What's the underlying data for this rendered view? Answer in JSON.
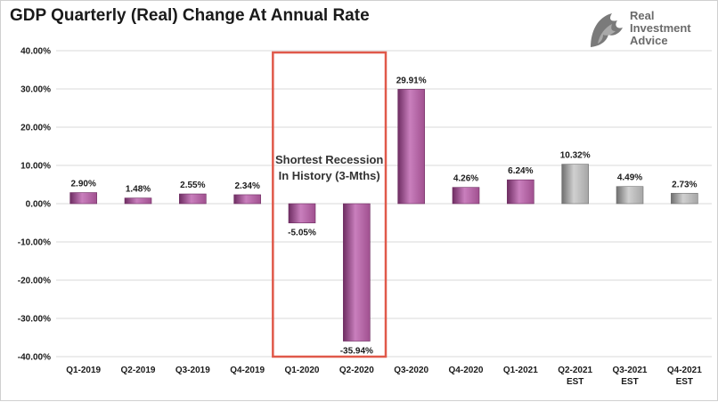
{
  "page": {
    "title": "GDP Quarterly (Real) Change At Annual Rate",
    "brand": {
      "line1": "Real",
      "line2": "Investment",
      "line3": "Advice"
    }
  },
  "chart_data": {
    "type": "bar",
    "title": "GDP Quarterly (Real) Change At Annual Rate",
    "xlabel": "",
    "ylabel": "",
    "ylim": [
      -40,
      40
    ],
    "yticks": [
      40,
      30,
      20,
      10,
      0,
      -10,
      -20,
      -30,
      -40
    ],
    "ytick_labels": [
      "40.00%",
      "30.00%",
      "20.00%",
      "10.00%",
      "0.00%",
      "-10.00%",
      "-20.00%",
      "-30.00%",
      "-40.00%"
    ],
    "grid": true,
    "legend": "none",
    "categories": [
      [
        "Q1-2019"
      ],
      [
        "Q2-2019"
      ],
      [
        "Q3-2019"
      ],
      [
        "Q4-2019"
      ],
      [
        "Q1-2020"
      ],
      [
        "Q2-2020"
      ],
      [
        "Q3-2020"
      ],
      [
        "Q4-2020"
      ],
      [
        "Q1-2021"
      ],
      [
        "Q2-2021",
        "EST"
      ],
      [
        "Q3-2021",
        "EST"
      ],
      [
        "Q4-2021",
        "EST"
      ]
    ],
    "values": [
      2.9,
      1.48,
      2.55,
      2.34,
      -5.05,
      -35.94,
      29.91,
      4.26,
      6.24,
      10.32,
      4.49,
      2.73
    ],
    "value_labels": [
      "2.90%",
      "1.48%",
      "2.55%",
      "2.34%",
      "-5.05%",
      "-35.94%",
      "29.91%",
      "4.26%",
      "6.24%",
      "10.32%",
      "4.49%",
      "2.73%"
    ],
    "estimate": [
      false,
      false,
      false,
      false,
      false,
      false,
      false,
      false,
      false,
      true,
      true,
      true
    ],
    "colors": {
      "actual": "#a0508f",
      "actual_light": "#c97fbd",
      "actual_dark": "#6e2d62",
      "estimate": "#a6a6a6",
      "estimate_light": "#d0d0d0",
      "estimate_dark": "#6f6f6f",
      "grid": "#d9d9d9",
      "highlight_box": "#e0594a"
    },
    "annotation": {
      "lines": [
        "Shortest Recession",
        "In History (3-Mths)"
      ],
      "spans_categories": [
        "Q1-2020",
        "Q2-2020"
      ]
    }
  }
}
